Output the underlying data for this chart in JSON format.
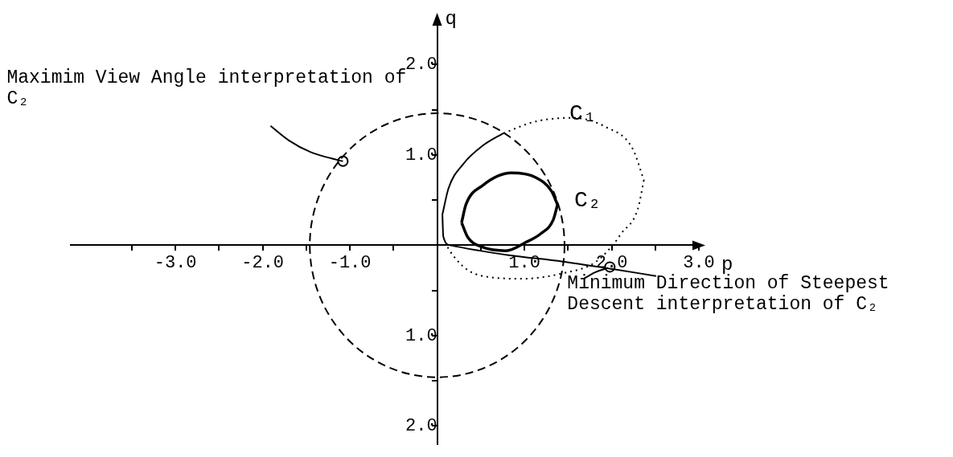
{
  "chart_data": {
    "type": "line",
    "xlabel": "p",
    "ylabel": "q",
    "xlim": [
      -4.2,
      3.0
    ],
    "ylim": [
      -2.2,
      2.5
    ],
    "xticks": [
      {
        "value": -3.5,
        "label": null
      },
      {
        "value": -3,
        "label": "-3.0"
      },
      {
        "value": -2.5,
        "label": null
      },
      {
        "value": -2,
        "label": "-2.0"
      },
      {
        "value": -1.5,
        "label": null
      },
      {
        "value": -1,
        "label": "-1.0"
      },
      {
        "value": -0.5,
        "label": null
      },
      {
        "value": 0.5,
        "label": null
      },
      {
        "value": 1,
        "label": "1.0"
      },
      {
        "value": 1.5,
        "label": null
      },
      {
        "value": 2,
        "label": "2.0"
      },
      {
        "value": 2.5,
        "label": null
      },
      {
        "value": 3,
        "label": "3.0"
      }
    ],
    "yticks": [
      {
        "value": -2,
        "label": "2.0"
      },
      {
        "value": -1.5,
        "label": null
      },
      {
        "value": -1,
        "label": "1.0"
      },
      {
        "value": -0.5,
        "label": null
      },
      {
        "value": 0.5,
        "label": null
      },
      {
        "value": 1,
        "label": "1.0"
      },
      {
        "value": 1.5,
        "label": null
      },
      {
        "value": 2,
        "label": "2.0"
      }
    ],
    "grid": false,
    "legend": false,
    "marker": "none",
    "series": [
      {
        "color": "#000000",
        "line_style": "dotted",
        "x": [
          0.76,
          1.13,
          1.56,
          1.93,
          2.24,
          2.37
        ],
        "values": [
          1.24,
          1.37,
          1.41,
          1.31,
          1.07,
          0.72
        ]
      },
      {
        "color": "#000000",
        "line_style": "dotted",
        "x": [
          2.37,
          2.3,
          2.11,
          2.02,
          1.81,
          1.44,
          0.98,
          0.67,
          0.36,
          0.18,
          0.1
        ],
        "values": [
          0.72,
          0.4,
          0.13,
          0.01,
          -0.19,
          -0.31,
          -0.37,
          -0.36,
          -0.28,
          -0.11,
          0.01
        ]
      },
      {
        "color": "#000000",
        "line_style": "solid",
        "x": [
          0.06,
          0.13,
          0.3,
          0.52,
          0.76
        ],
        "values": [
          0.34,
          0.63,
          0.9,
          1.1,
          1.24
        ]
      },
      {
        "color": "#000000",
        "line_style": "solid",
        "x": [
          0.06,
          0.07,
          0.15,
          0.49,
          0.82,
          1.44,
          1.99,
          2.51
        ],
        "values": [
          0.34,
          0.1,
          0,
          -0.06,
          -0.11,
          -0.18,
          -0.26,
          -0.34
        ]
      },
      {
        "color": "#000000",
        "line_style": "solid",
        "x": [
          0.28,
          0.33,
          0.52,
          0.85,
          1.13,
          1.31,
          1.38
        ],
        "values": [
          0.25,
          0.45,
          0.66,
          0.8,
          0.75,
          0.6,
          0.45
        ]
      },
      {
        "color": "#000000",
        "line_style": "solid",
        "x": [
          0.28,
          0.35,
          0.52,
          0.79,
          1.01,
          1.19,
          1.33,
          1.38
        ],
        "values": [
          0.25,
          0.09,
          -0.02,
          -0.06,
          0.03,
          0.13,
          0.28,
          0.45
        ]
      },
      {
        "color": "#000000",
        "line_style": "solid",
        "x": [
          -1.91,
          -1.7,
          -1.45,
          -1.21,
          -1.08
        ],
        "values": [
          1.32,
          1.16,
          1.03,
          0.96,
          0.93
        ]
      },
      {
        "color": "#000000",
        "line_style": "solid",
        "x": [
          1.68,
          1.81,
          1.96
        ],
        "values": [
          -0.37,
          -0.3,
          -0.25
        ]
      },
      {
        "type": "scatter",
        "color": "#000000",
        "marker": "circle",
        "x": [
          -1.08,
          1.98
        ],
        "values": [
          0.93,
          -0.24
        ]
      }
    ],
    "annotations": [
      {
        "text": "Maximim View Angle interpretation of C₂",
        "x": -1.08,
        "y": 0.93
      },
      {
        "text": "Minimum Direction of Steepest Descent interpretation of C₂",
        "x": 1.98,
        "y": -0.24
      },
      "C₁",
      "C₂"
    ]
  }
}
